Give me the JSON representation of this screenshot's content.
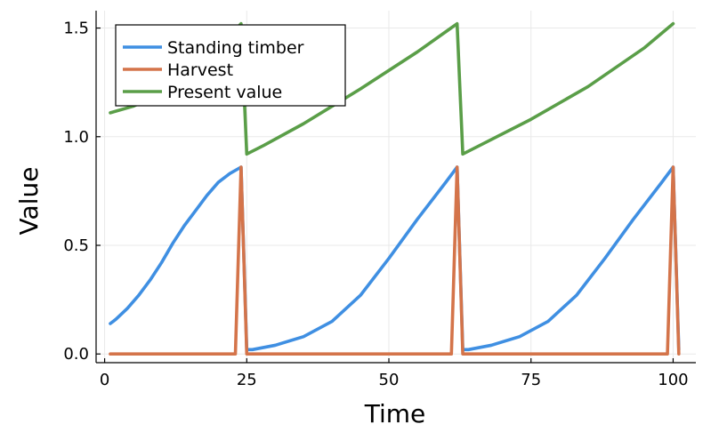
{
  "chart_data": {
    "type": "line",
    "title": "",
    "xlabel": "Time",
    "ylabel": "Value",
    "xlim": [
      -1.5,
      104
    ],
    "ylim": [
      -0.04,
      1.58
    ],
    "xticks": [
      0,
      25,
      50,
      75,
      100
    ],
    "xtick_labels": [
      "0",
      "25",
      "50",
      "75",
      "100"
    ],
    "yticks": [
      0.0,
      0.5,
      1.0,
      1.5
    ],
    "ytick_labels": [
      "0.0",
      "0.5",
      "1.0",
      "1.5"
    ],
    "grid": true,
    "legend_position": "top-left",
    "series": [
      {
        "name": "Standing timber",
        "color": "#3f8fe2",
        "x": [
          1,
          2,
          4,
          6,
          8,
          10,
          12,
          14,
          16,
          18,
          20,
          22,
          24,
          25,
          26,
          30,
          35,
          40,
          45,
          50,
          55,
          60,
          62,
          63,
          64,
          68,
          73,
          78,
          83,
          88,
          93,
          98,
          100,
          101
        ],
        "y": [
          0.14,
          0.16,
          0.21,
          0.27,
          0.34,
          0.42,
          0.51,
          0.59,
          0.66,
          0.73,
          0.79,
          0.83,
          0.86,
          0.02,
          0.02,
          0.04,
          0.08,
          0.15,
          0.27,
          0.44,
          0.62,
          0.79,
          0.86,
          0.02,
          0.02,
          0.04,
          0.08,
          0.15,
          0.27,
          0.44,
          0.62,
          0.79,
          0.86,
          0.02
        ]
      },
      {
        "name": "Harvest",
        "color": "#d4744a",
        "x": [
          1,
          23,
          24,
          25,
          61,
          62,
          63,
          99,
          100,
          101
        ],
        "y": [
          0.0,
          0.0,
          0.86,
          0.0,
          0.0,
          0.86,
          0.0,
          0.0,
          0.86,
          0.0
        ]
      },
      {
        "name": "Present value",
        "color": "#5a9e48",
        "x": [
          1,
          5,
          10,
          15,
          20,
          24,
          25,
          28,
          35,
          45,
          55,
          62,
          63,
          66,
          75,
          85,
          95,
          100
        ],
        "y": [
          1.11,
          1.14,
          1.2,
          1.29,
          1.41,
          1.52,
          0.92,
          0.96,
          1.06,
          1.22,
          1.39,
          1.52,
          0.92,
          0.96,
          1.08,
          1.23,
          1.41,
          1.52
        ]
      }
    ]
  }
}
